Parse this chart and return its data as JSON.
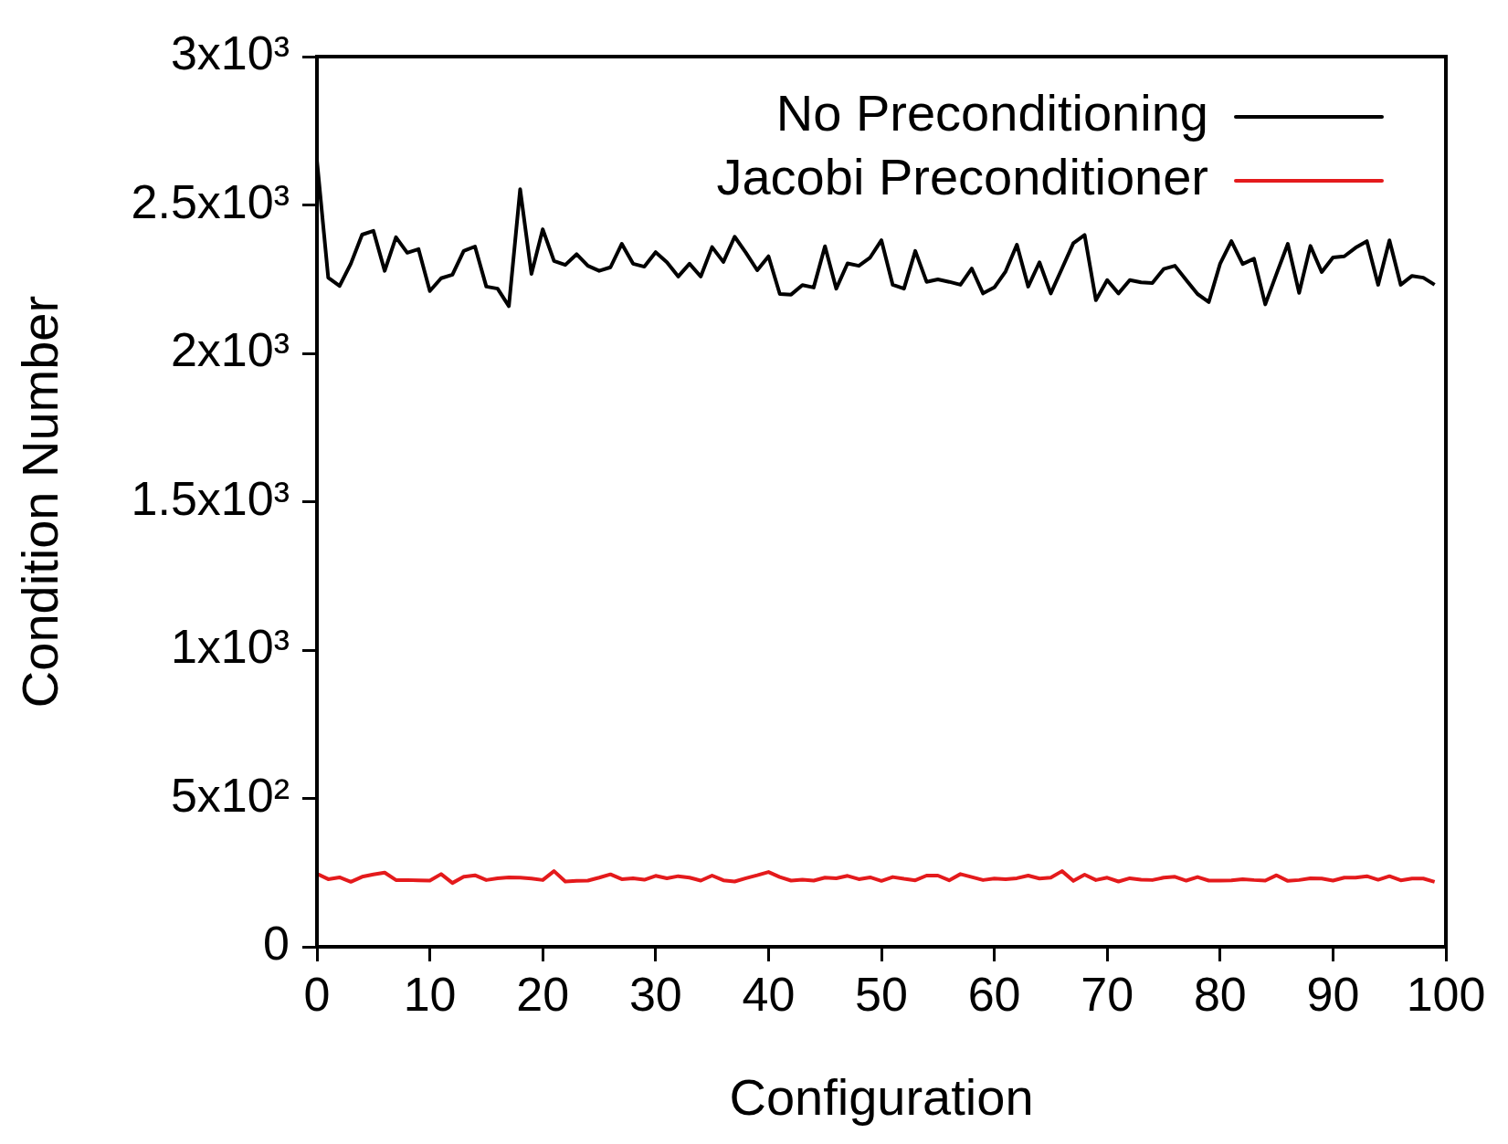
{
  "chart_data": {
    "type": "line",
    "xlabel": "Configuration",
    "ylabel": "Condition Number",
    "x": [
      0,
      1,
      2,
      3,
      4,
      5,
      6,
      7,
      8,
      9,
      10,
      11,
      12,
      13,
      14,
      15,
      16,
      17,
      18,
      19,
      20,
      21,
      22,
      23,
      24,
      25,
      26,
      27,
      28,
      29,
      30,
      31,
      32,
      33,
      34,
      35,
      36,
      37,
      38,
      39,
      40,
      41,
      42,
      43,
      44,
      45,
      46,
      47,
      48,
      49,
      50,
      51,
      52,
      53,
      54,
      55,
      56,
      57,
      58,
      59,
      60,
      61,
      62,
      63,
      64,
      65,
      66,
      67,
      68,
      69,
      70,
      71,
      72,
      73,
      74,
      75,
      76,
      77,
      78,
      79,
      80,
      81,
      82,
      83,
      84,
      85,
      86,
      87,
      88,
      89,
      90,
      91,
      92,
      93,
      94,
      95,
      96,
      97,
      98,
      99
    ],
    "series": [
      {
        "name": "No Preconditioning",
        "color": "#000000",
        "values": [
          2650,
          2255,
          2227,
          2302,
          2400,
          2413,
          2278,
          2391,
          2339,
          2351,
          2210,
          2253,
          2265,
          2345,
          2360,
          2225,
          2218,
          2159,
          2553,
          2268,
          2418,
          2311,
          2298,
          2334,
          2295,
          2278,
          2290,
          2369,
          2302,
          2292,
          2341,
          2307,
          2259,
          2302,
          2259,
          2358,
          2308,
          2393,
          2339,
          2280,
          2327,
          2200,
          2198,
          2230,
          2222,
          2361,
          2218,
          2303,
          2295,
          2323,
          2381,
          2231,
          2218,
          2345,
          2241,
          2249,
          2241,
          2231,
          2286,
          2202,
          2222,
          2276,
          2366,
          2225,
          2307,
          2202,
          2286,
          2371,
          2399,
          2179,
          2247,
          2202,
          2247,
          2239,
          2237,
          2284,
          2295,
          2247,
          2200,
          2173,
          2302,
          2378,
          2301,
          2319,
          2165,
          2268,
          2369,
          2204,
          2362,
          2274,
          2323,
          2327,
          2356,
          2378,
          2231,
          2381,
          2231,
          2261,
          2255,
          2231
        ]
      },
      {
        "name": "Jacobi Preconditioner",
        "color": "#e41a1c",
        "values": [
          246,
          228,
          234,
          219,
          236,
          244,
          250,
          225,
          225,
          224,
          223,
          245,
          215,
          236,
          241,
          225,
          231,
          234,
          233,
          230,
          225,
          255,
          220,
          222,
          223,
          233,
          244,
          228,
          231,
          226,
          239,
          231,
          238,
          233,
          223,
          240,
          224,
          220,
          231,
          241,
          252,
          235,
          223,
          226,
          223,
          233,
          231,
          239,
          228,
          234,
          222,
          235,
          229,
          224,
          240,
          240,
          224,
          245,
          235,
          225,
          230,
          228,
          231,
          240,
          230,
          233,
          255,
          222,
          243,
          225,
          233,
          220,
          231,
          226,
          225,
          233,
          236,
          223,
          235,
          223,
          223,
          224,
          228,
          225,
          223,
          241,
          222,
          225,
          231,
          230,
          223,
          233,
          233,
          238,
          226,
          238,
          224,
          230,
          230,
          219
        ]
      }
    ],
    "xlim": [
      0,
      100
    ],
    "xticks": [
      0,
      10,
      20,
      30,
      40,
      50,
      60,
      70,
      80,
      90,
      100
    ],
    "ylim": [
      0,
      3000
    ],
    "yticks": [
      0,
      {
        "value": 500,
        "label": "5x10²"
      },
      {
        "value": 1000,
        "label": "1x10³"
      },
      {
        "value": 1500,
        "label": "1.5x10³"
      },
      {
        "value": 2000,
        "label": "2x10³"
      },
      {
        "value": 2500,
        "label": "2.5x10³"
      },
      {
        "value": 3000,
        "label": "3x10³"
      }
    ],
    "grid": false,
    "legend": "top right",
    "marker": "none",
    "line_style": "solid"
  }
}
